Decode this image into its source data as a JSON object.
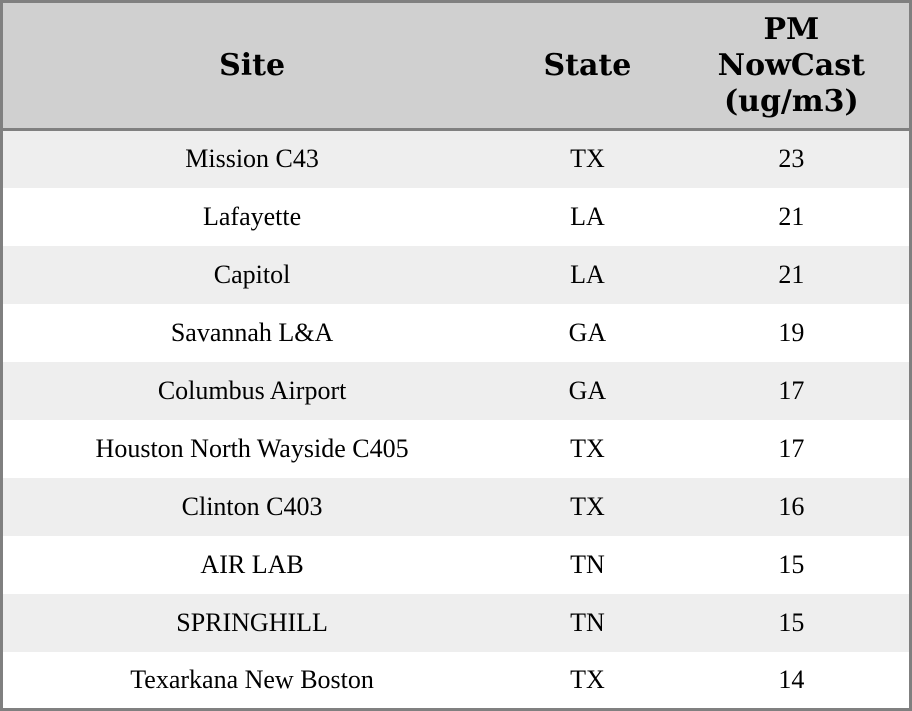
{
  "table": {
    "columns": {
      "site": {
        "label": "Site"
      },
      "state": {
        "label": "State"
      },
      "pm": {
        "label": "PM NowCast (ug/m3)"
      }
    },
    "rows": [
      {
        "site": "Mission C43",
        "state": "TX",
        "pm": "23"
      },
      {
        "site": "Lafayette",
        "state": "LA",
        "pm": "21"
      },
      {
        "site": "Capitol",
        "state": "LA",
        "pm": "21"
      },
      {
        "site": "Savannah L&A",
        "state": "GA",
        "pm": "19"
      },
      {
        "site": "Columbus Airport",
        "state": "GA",
        "pm": "17"
      },
      {
        "site": "Houston North Wayside C405",
        "state": "TX",
        "pm": "17"
      },
      {
        "site": "Clinton C403",
        "state": "TX",
        "pm": "16"
      },
      {
        "site": "AIR LAB",
        "state": "TN",
        "pm": "15"
      },
      {
        "site": "SPRINGHILL",
        "state": "TN",
        "pm": "15"
      },
      {
        "site": "Texarkana New Boston",
        "state": "TX",
        "pm": "14"
      }
    ]
  },
  "colors": {
    "border": "#808080",
    "header_bg": "#d0d0d0",
    "row_odd_bg": "#eeeeee",
    "row_even_bg": "#ffffff",
    "text": "#000000"
  },
  "chart_data": {
    "type": "table",
    "columns": [
      "Site",
      "State",
      "PM NowCast (ug/m3)"
    ],
    "rows": [
      [
        "Mission C43",
        "TX",
        23
      ],
      [
        "Lafayette",
        "LA",
        21
      ],
      [
        "Capitol",
        "LA",
        21
      ],
      [
        "Savannah L&A",
        "GA",
        19
      ],
      [
        "Columbus Airport",
        "GA",
        17
      ],
      [
        "Houston North Wayside C405",
        "TX",
        17
      ],
      [
        "Clinton C403",
        "TX",
        16
      ],
      [
        "AIR LAB",
        "TN",
        15
      ],
      [
        "SPRINGHILL",
        "TN",
        15
      ],
      [
        "Texarkana New Boston",
        "TX",
        14
      ]
    ]
  }
}
